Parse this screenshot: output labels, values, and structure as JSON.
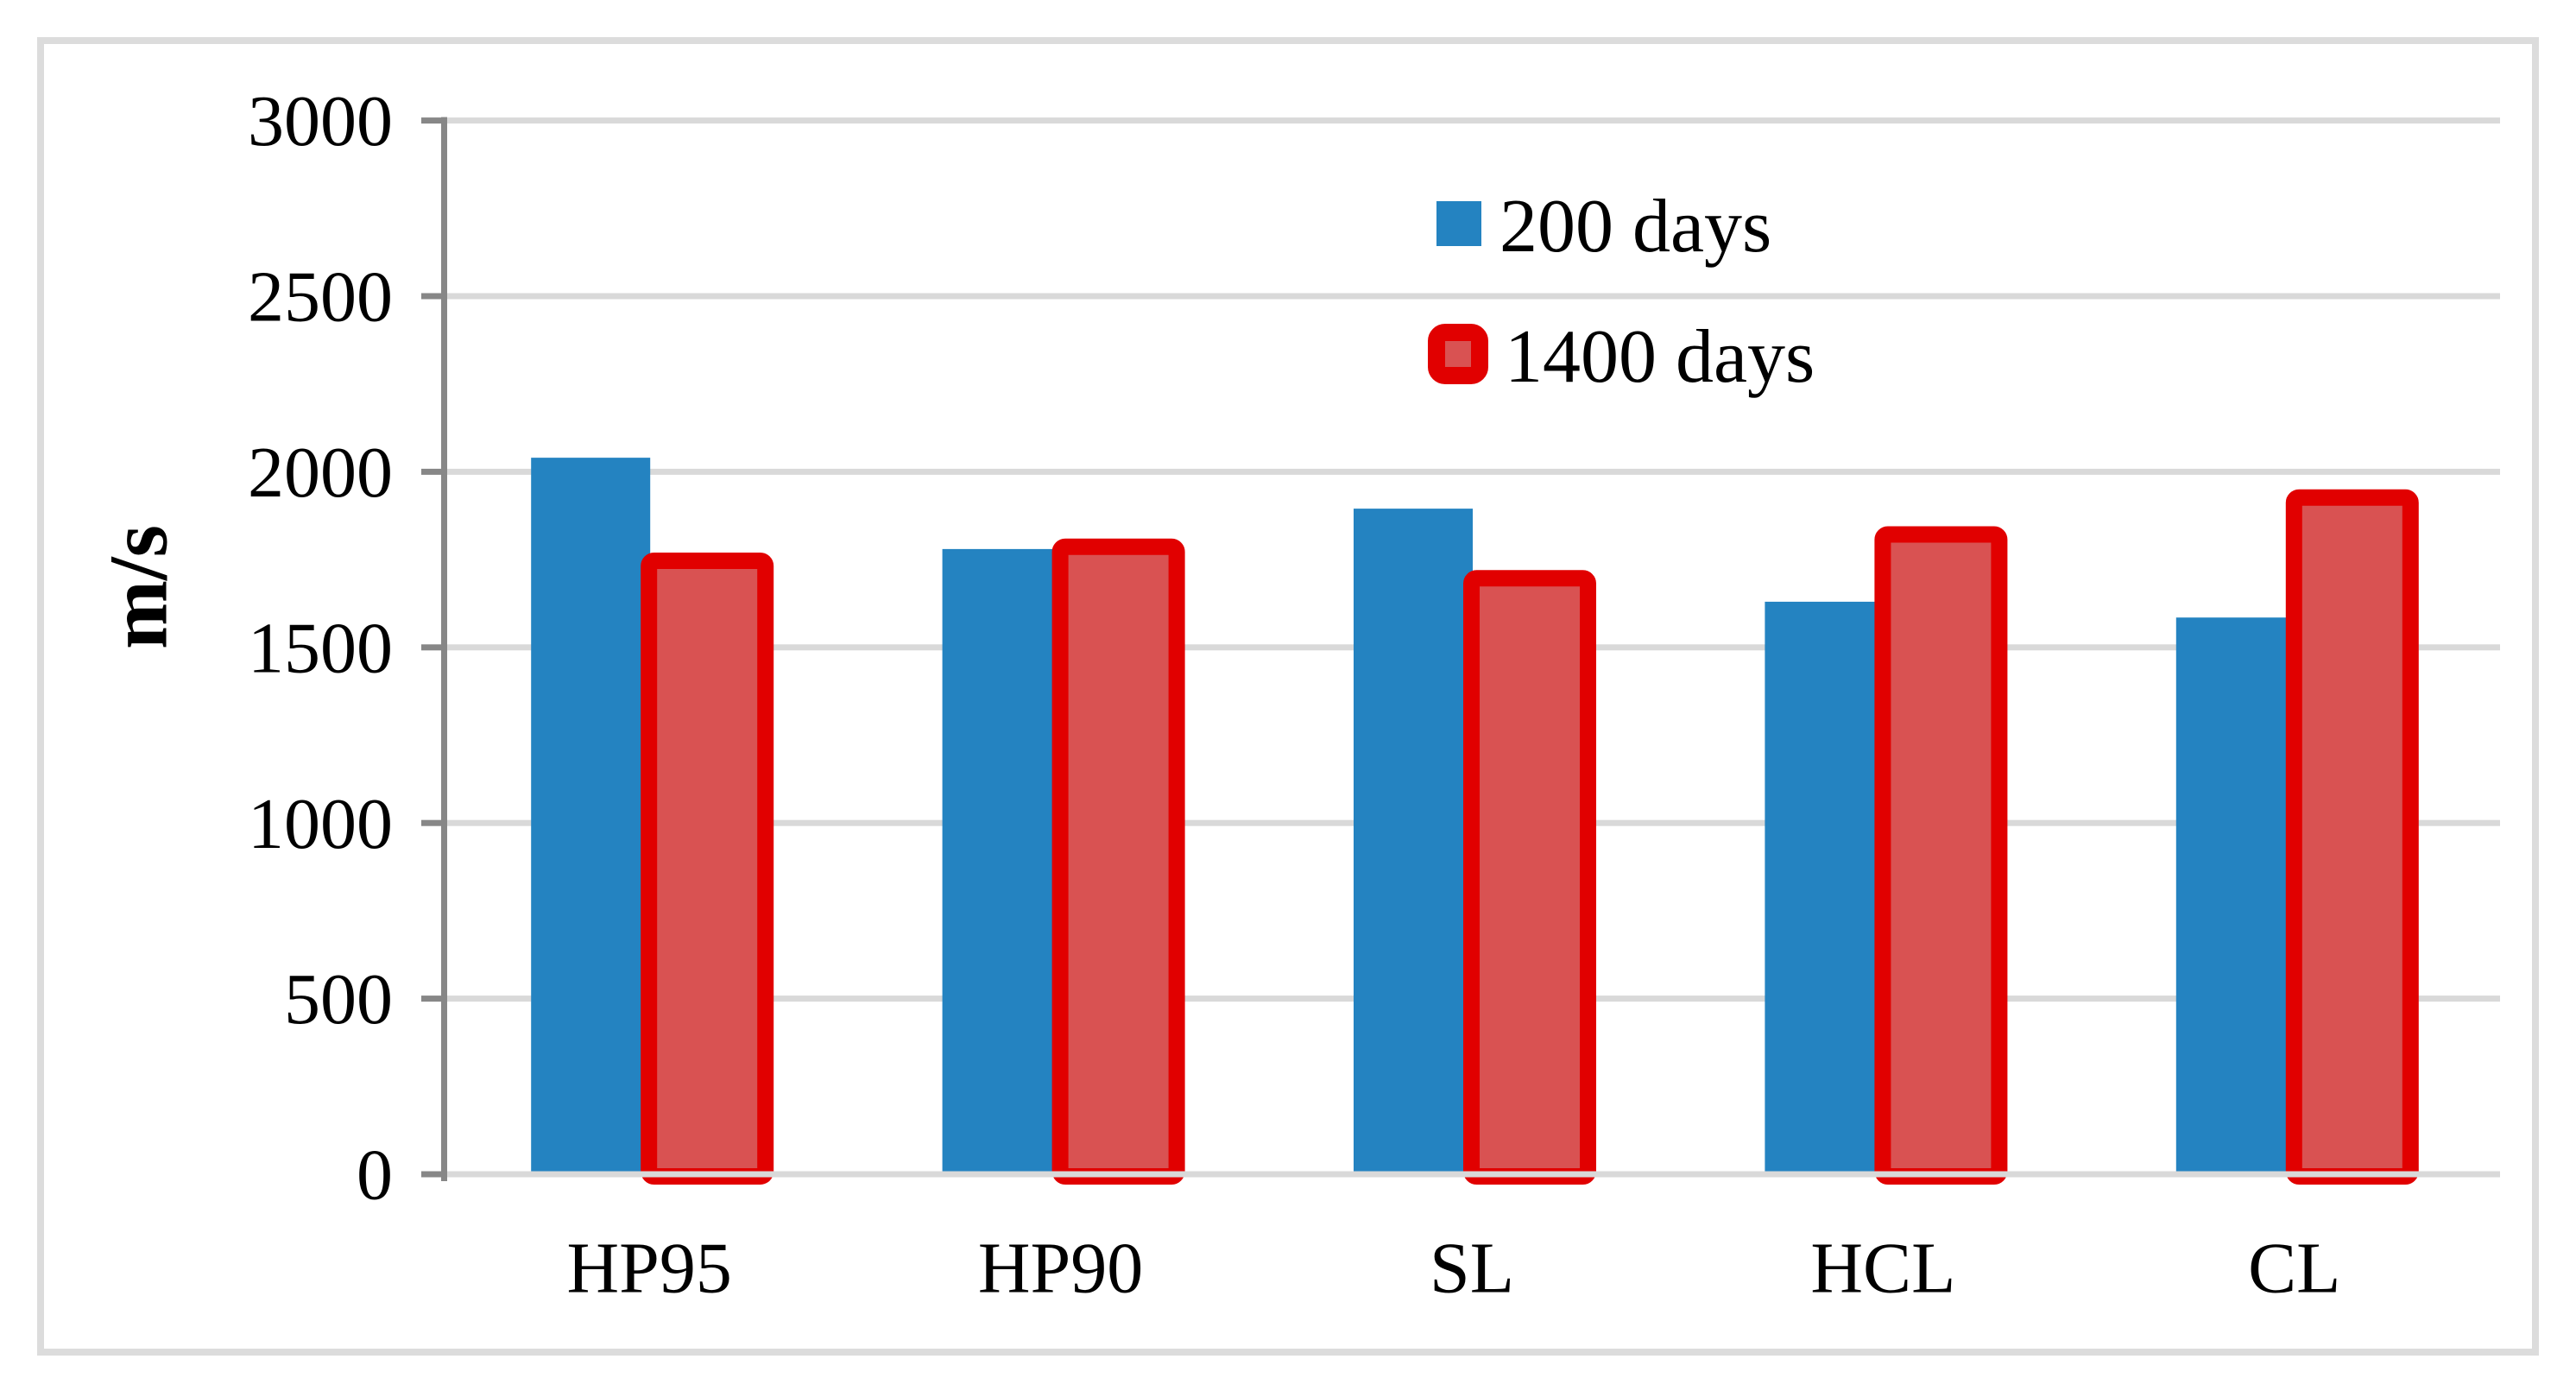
{
  "chart_data": {
    "type": "bar",
    "title": "",
    "categories": [
      "HP95",
      "HP90",
      "SL",
      "HCL",
      "CL"
    ],
    "series": [
      {
        "name": "200 days",
        "values": [
          2040,
          1780,
          1895,
          1630,
          1585
        ]
      },
      {
        "name": "1400 days",
        "values": [
          1770,
          1810,
          1720,
          1845,
          1950
        ]
      }
    ],
    "xlabel": "",
    "ylabel": "m/s",
    "ylim": [
      0,
      3000
    ],
    "ytick_step": 500,
    "yticks": [
      0,
      500,
      1000,
      1500,
      2000,
      2500,
      3000
    ],
    "grid": true,
    "legend_position": "inside-top-center-right",
    "colors": {
      "series_200_days_fill": "#2483C1",
      "series_1400_days_fill": "#D95252",
      "series_1400_days_border": "#E10000",
      "gridline": "#D9D9D9",
      "axis_line": "#878787",
      "chart_frame": "#DCDCDC",
      "text": "#000000",
      "background": "#FFFFFF"
    }
  }
}
